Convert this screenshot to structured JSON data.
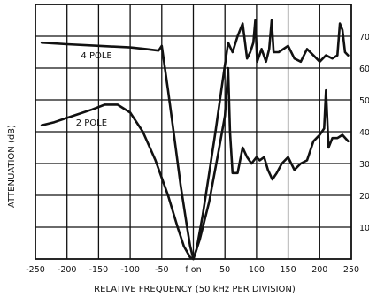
{
  "chart_data": {
    "type": "line",
    "title": "",
    "xlabel": "RELATIVE FREQUENCY (50 kHz PER DIVISION)",
    "ylabel": "ATTENUATION (dB)",
    "xlim": [
      -250,
      250
    ],
    "ylim": [
      0,
      80
    ],
    "x_ticks": [
      -250,
      -200,
      -150,
      -100,
      -50,
      0,
      50,
      100,
      150,
      200,
      250
    ],
    "x_tick_labels": [
      "-250",
      "-200",
      "-150",
      "-100",
      "-50",
      "f on",
      "50",
      "100",
      "150",
      "200",
      "250"
    ],
    "y_ticks": [
      10,
      20,
      30,
      40,
      50,
      60,
      70
    ],
    "y_tick_labels": [
      "10",
      "20",
      "30",
      "40",
      "50",
      "60",
      "70"
    ],
    "grid": true,
    "legend": "none",
    "annotations": [
      {
        "text": "4 POLE",
        "x": -178,
        "y": 63
      },
      {
        "text": "2 POLE",
        "x": -186,
        "y": 42
      }
    ],
    "series": [
      {
        "points": [
          [
            -240,
            68
          ],
          [
            -200,
            67.5
          ],
          [
            -150,
            67
          ],
          [
            -100,
            66.5
          ],
          [
            -75,
            66
          ],
          [
            -55,
            65.5
          ],
          [
            -50,
            67
          ],
          [
            -40,
            53
          ],
          [
            -30,
            38
          ],
          [
            -20,
            23
          ],
          [
            -10,
            10
          ],
          [
            -5,
            4
          ],
          [
            0,
            0
          ],
          [
            5,
            3
          ],
          [
            15,
            14
          ],
          [
            25,
            27
          ],
          [
            35,
            40
          ],
          [
            45,
            54
          ],
          [
            55,
            68
          ],
          [
            62,
            65
          ],
          [
            70,
            70
          ],
          [
            78,
            74
          ],
          [
            85,
            63
          ],
          [
            90,
            65
          ],
          [
            95,
            68
          ],
          [
            98,
            75
          ],
          [
            101,
            62
          ],
          [
            108,
            66
          ],
          [
            115,
            62
          ],
          [
            120,
            66
          ],
          [
            124,
            75
          ],
          [
            127,
            65
          ],
          [
            135,
            65
          ],
          [
            150,
            67
          ],
          [
            160,
            63
          ],
          [
            170,
            62
          ],
          [
            180,
            66
          ],
          [
            190,
            64
          ],
          [
            200,
            62
          ],
          [
            210,
            64
          ],
          [
            220,
            63
          ],
          [
            228,
            64
          ],
          [
            232,
            74
          ],
          [
            236,
            72
          ],
          [
            240,
            65
          ],
          [
            245,
            64
          ]
        ]
      },
      {
        "points": [
          [
            -240,
            42
          ],
          [
            -220,
            43
          ],
          [
            -190,
            45
          ],
          [
            -160,
            47
          ],
          [
            -140,
            48.5
          ],
          [
            -120,
            48.5
          ],
          [
            -100,
            46
          ],
          [
            -80,
            40
          ],
          [
            -60,
            31
          ],
          [
            -40,
            20
          ],
          [
            -25,
            10
          ],
          [
            -15,
            4
          ],
          [
            -5,
            0.5
          ],
          [
            0,
            0
          ],
          [
            10,
            6
          ],
          [
            25,
            18
          ],
          [
            40,
            34
          ],
          [
            50,
            45
          ],
          [
            55,
            60
          ],
          [
            58,
            40
          ],
          [
            62,
            27
          ],
          [
            70,
            27
          ],
          [
            78,
            35
          ],
          [
            85,
            32
          ],
          [
            92,
            30
          ],
          [
            100,
            32
          ],
          [
            105,
            31
          ],
          [
            112,
            32
          ],
          [
            118,
            28
          ],
          [
            125,
            25
          ],
          [
            132,
            27
          ],
          [
            140,
            30
          ],
          [
            150,
            32
          ],
          [
            160,
            28
          ],
          [
            170,
            30
          ],
          [
            180,
            31
          ],
          [
            190,
            37
          ],
          [
            200,
            39
          ],
          [
            207,
            41
          ],
          [
            210,
            53
          ],
          [
            214,
            35
          ],
          [
            220,
            38
          ],
          [
            228,
            38
          ],
          [
            236,
            39
          ],
          [
            245,
            37
          ]
        ]
      }
    ]
  }
}
